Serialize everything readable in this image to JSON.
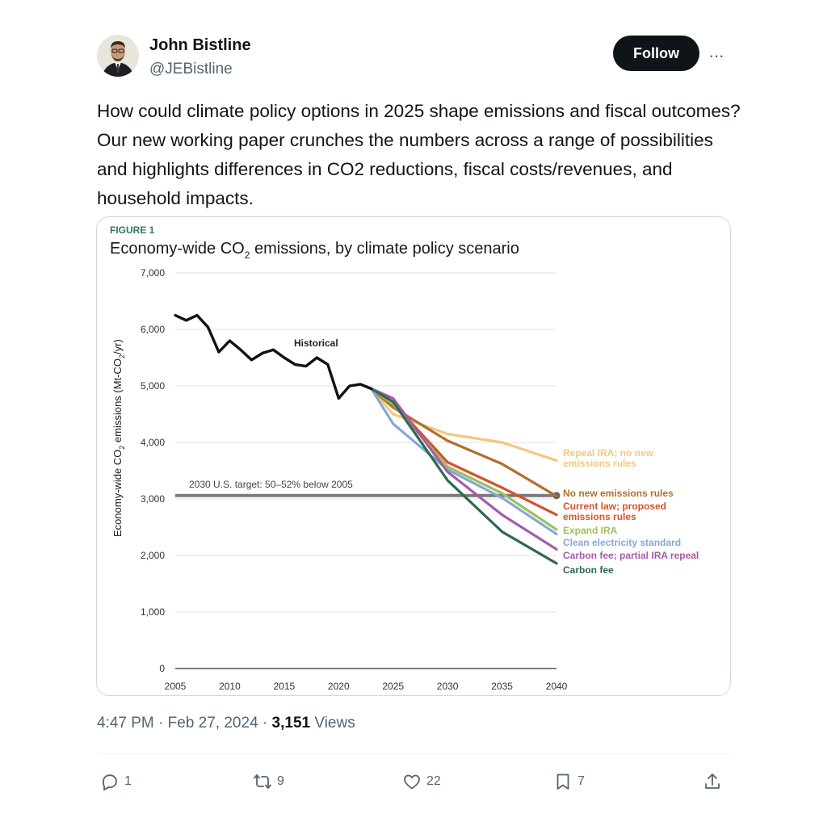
{
  "author": {
    "name": "John Bistline",
    "handle": "@JEBistline",
    "follow_label": "Follow",
    "more_label": "···"
  },
  "tweet": {
    "text": "How could climate policy options in 2025 shape emissions and fiscal outcomes? Our new working paper crunches the numbers across a range of possibilities and highlights differences in CO2 reductions, fiscal costs/revenues, and household impacts."
  },
  "meta": {
    "time": "4:47 PM",
    "date": "Feb 27, 2024",
    "views_count": "3,151",
    "views_label": "Views"
  },
  "actions": {
    "replies": "1",
    "retweets": "9",
    "likes": "22",
    "bookmarks": "7"
  },
  "icons": [
    "reply-icon",
    "retweet-icon",
    "like-icon",
    "bookmark-icon",
    "share-icon"
  ],
  "chart_data": {
    "type": "line",
    "figure_label": "FIGURE 1",
    "title_pre": "Economy-wide CO",
    "title_sub": "2",
    "title_post": " emissions, by climate policy scenario",
    "ylabel_pre": "Economy-wide CO",
    "ylabel_sub": "2",
    "ylabel_post": " emissions (Mt-CO",
    "ylabel_sub2": "2",
    "ylabel_end": "/yr)",
    "ylim": [
      0,
      7000
    ],
    "xlim": [
      2005,
      2040
    ],
    "yticks": [
      0,
      1000,
      2000,
      3000,
      4000,
      5000,
      6000,
      7000
    ],
    "ytick_labels": [
      "0",
      "1,000",
      "2,000",
      "3,000",
      "4,000",
      "5,000",
      "6,000",
      "7,000"
    ],
    "xticks": [
      2005,
      2010,
      2015,
      2020,
      2025,
      2030,
      2035,
      2040
    ],
    "xtick_labels": [
      "2005",
      "2010",
      "2015",
      "2020",
      "2025",
      "2030",
      "2035",
      "2040"
    ],
    "grid": true,
    "target": {
      "label": "2030 U.S. target: 50–52% below 2005",
      "value": 3060,
      "color": "#7a7a7a"
    },
    "historical": {
      "name": "Historical",
      "color": "#111111",
      "x": [
        2005,
        2006,
        2007,
        2008,
        2009,
        2010,
        2011,
        2012,
        2013,
        2014,
        2015,
        2016,
        2017,
        2018,
        2019,
        2020,
        2021,
        2022,
        2023
      ],
      "y": [
        6250,
        6160,
        6250,
        6040,
        5600,
        5800,
        5640,
        5460,
        5580,
        5640,
        5500,
        5380,
        5350,
        5500,
        5380,
        4780,
        5000,
        5030,
        4950
      ]
    },
    "series": [
      {
        "name": "Repeal IRA; no new emissions rules",
        "lines": [
          "Repeal IRA; no new",
          "emissions rules"
        ],
        "color": "#f5c77e",
        "x": [
          2023,
          2025,
          2030,
          2035,
          2040
        ],
        "y": [
          4950,
          4500,
          4150,
          4000,
          3680
        ]
      },
      {
        "name": "No new emissions rules",
        "lines": [
          "No new emissions rules"
        ],
        "color": "#b0702a",
        "x": [
          2023,
          2025,
          2030,
          2035,
          2040
        ],
        "y": [
          4950,
          4620,
          4030,
          3620,
          3050
        ]
      },
      {
        "name": "Current law; proposed emissions rules",
        "lines": [
          "Current law; proposed",
          "emissions rules"
        ],
        "color": "#d4532c",
        "x": [
          2023,
          2025,
          2030,
          2035,
          2040
        ],
        "y": [
          4950,
          4700,
          3650,
          3200,
          2720
        ]
      },
      {
        "name": "Expand IRA",
        "lines": [
          "Expand IRA"
        ],
        "color": "#9cc15a",
        "x": [
          2023,
          2025,
          2030,
          2035,
          2040
        ],
        "y": [
          4950,
          4680,
          3570,
          3100,
          2460
        ]
      },
      {
        "name": "Clean electricity standard",
        "lines": [
          "Clean electricity standard"
        ],
        "color": "#86a8d8",
        "x": [
          2023,
          2025,
          2030,
          2035,
          2040
        ],
        "y": [
          4950,
          4330,
          3520,
          3020,
          2380
        ]
      },
      {
        "name": "Carbon fee; partial IRA repeal",
        "lines": [
          "Carbon fee; partial IRA repeal"
        ],
        "color": "#a65aa8",
        "x": [
          2023,
          2025,
          2030,
          2035,
          2040
        ],
        "y": [
          4950,
          4780,
          3480,
          2720,
          2110
        ]
      },
      {
        "name": "Carbon fee",
        "lines": [
          "Carbon fee"
        ],
        "color": "#2e6a4f",
        "x": [
          2023,
          2025,
          2030,
          2035,
          2040
        ],
        "y": [
          4950,
          4720,
          3330,
          2420,
          1860
        ]
      }
    ]
  }
}
